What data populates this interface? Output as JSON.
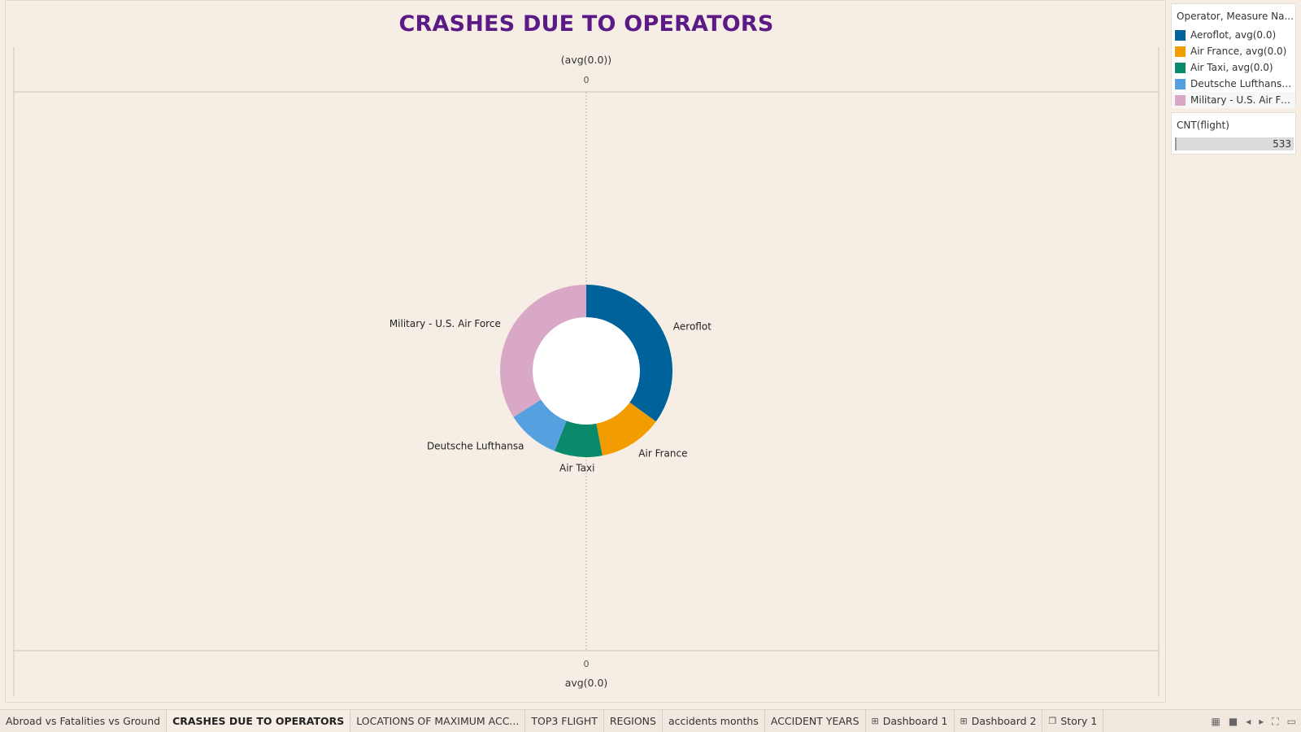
{
  "chart_data": {
    "type": "pie",
    "title": "CRASHES DUE TO OPERATORS",
    "top_axis_label": "(avg(0.0))",
    "top_axis_tick": "0",
    "bottom_axis_label": "avg(0.0)",
    "bottom_axis_tick": "0",
    "slices": [
      {
        "label": "Aeroflot",
        "value": 35,
        "color": "#00629b"
      },
      {
        "label": "Air France",
        "value": 12,
        "color": "#f39c00"
      },
      {
        "label": "Air Taxi",
        "value": 9,
        "color": "#0a8a6a"
      },
      {
        "label": "Deutsche Lufthansa",
        "value": 10,
        "color": "#56a0e0"
      },
      {
        "label": "Military - U.S. Air Force",
        "value": 34,
        "color": "#d8a8c6"
      }
    ]
  },
  "legend": {
    "title": "Operator, Measure Na...",
    "items": [
      {
        "label": "Aeroflot, avg(0.0)",
        "color": "#00629b"
      },
      {
        "label": "Air France, avg(0.0)",
        "color": "#f39c00"
      },
      {
        "label": "Air Taxi, avg(0.0)",
        "color": "#0a8a6a"
      },
      {
        "label": "Deutsche Lufthansa, ..",
        "color": "#56a0e0"
      },
      {
        "label": "Military - U.S. Air For..",
        "color": "#d8a8c6"
      }
    ]
  },
  "count_card": {
    "title": "CNT(flight)",
    "value": "533"
  },
  "tabs": [
    {
      "label": "Abroad vs Fatalities vs Ground",
      "icon": ""
    },
    {
      "label": "CRASHES DUE TO OPERATORS",
      "icon": "",
      "active": true
    },
    {
      "label": "LOCATIONS OF MAXIMUM ACC...",
      "icon": ""
    },
    {
      "label": "TOP3 FLIGHT",
      "icon": ""
    },
    {
      "label": "REGIONS",
      "icon": ""
    },
    {
      "label": "accidents months",
      "icon": ""
    },
    {
      "label": "ACCIDENT YEARS",
      "icon": ""
    },
    {
      "label": "Dashboard 1",
      "icon": "dashboard-icon"
    },
    {
      "label": "Dashboard 2",
      "icon": "dashboard-icon"
    },
    {
      "label": "Story 1",
      "icon": "story-icon"
    }
  ]
}
